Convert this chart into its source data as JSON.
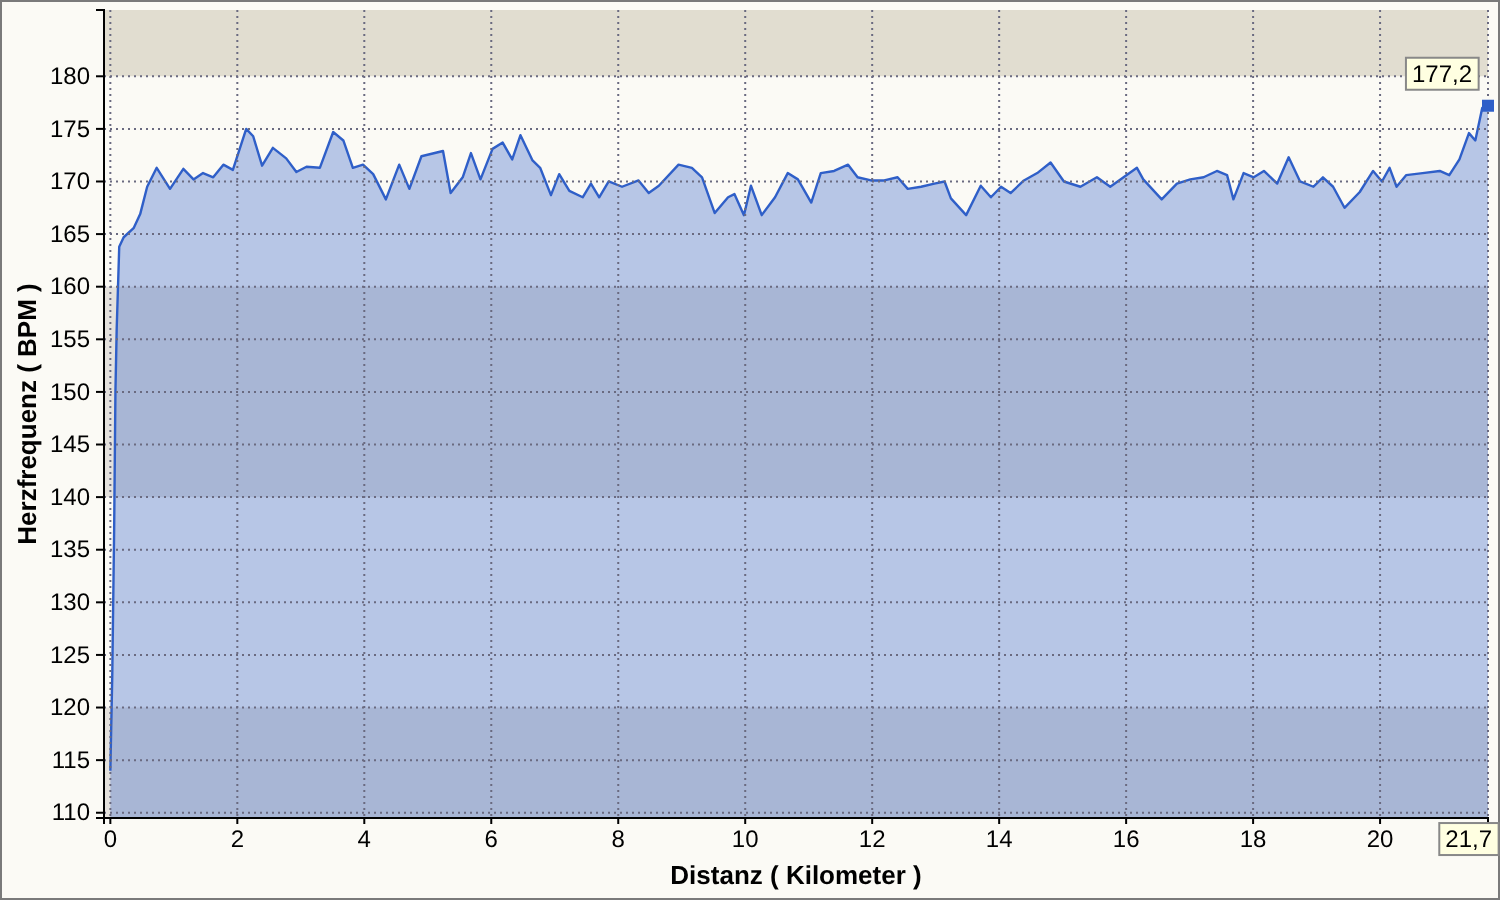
{
  "chart_data": {
    "type": "area",
    "xlabel": "Distanz ( Kilometer )",
    "ylabel": "Herzfrequenz ( BPM )",
    "x": [
      0,
      0.03,
      0.06,
      0.08,
      0.1,
      0.14,
      0.21,
      0.37,
      0.47,
      0.58,
      0.73,
      0.94,
      1.15,
      1.31,
      1.46,
      1.62,
      1.78,
      1.93,
      2.14,
      2.25,
      2.39,
      2.56,
      2.77,
      2.93,
      3.09,
      3.3,
      3.51,
      3.67,
      3.82,
      3.98,
      4.14,
      4.34,
      4.55,
      4.71,
      4.9,
      5.24,
      5.36,
      5.55,
      5.68,
      5.83,
      6.02,
      6.18,
      6.33,
      6.46,
      6.65,
      6.77,
      6.94,
      7.07,
      7.23,
      7.44,
      7.57,
      7.7,
      7.85,
      8.06,
      8.32,
      8.48,
      8.64,
      8.95,
      9.16,
      9.32,
      9.52,
      9.73,
      9.83,
      9.98,
      10.09,
      10.26,
      10.47,
      10.67,
      10.83,
      11.04,
      11.19,
      11.4,
      11.62,
      11.77,
      11.98,
      12.19,
      12.4,
      12.56,
      12.77,
      12.98,
      13.14,
      13.24,
      13.48,
      13.71,
      13.87,
      14.03,
      14.18,
      14.39,
      14.6,
      14.81,
      15.02,
      15.28,
      15.54,
      15.75,
      15.96,
      16.17,
      16.27,
      16.56,
      16.8,
      17.01,
      17.22,
      17.43,
      17.59,
      17.69,
      17.85,
      18.01,
      18.17,
      18.38,
      18.56,
      18.74,
      18.95,
      19.1,
      19.26,
      19.44,
      19.68,
      19.89,
      20.03,
      20.15,
      20.26,
      20.41,
      20.67,
      20.94,
      21.09,
      21.25,
      21.4,
      21.5,
      21.61,
      21.7
    ],
    "series": [
      {
        "color": "#2f5fc8",
        "values": [
          114,
          123,
          137,
          150,
          156,
          163.8,
          164.7,
          165.6,
          166.9,
          169.5,
          171.3,
          169.3,
          171.2,
          170.2,
          170.8,
          170.4,
          171.6,
          171.1,
          175,
          174.3,
          171.5,
          173.2,
          172.2,
          170.9,
          171.4,
          171.3,
          174.7,
          173.9,
          171.3,
          171.6,
          170.7,
          168.3,
          171.6,
          169.3,
          172.4,
          172.9,
          168.9,
          170.4,
          172.7,
          170.2,
          173.1,
          173.7,
          172.1,
          174.4,
          172,
          171.3,
          168.7,
          170.7,
          169.1,
          168.5,
          169.8,
          168.5,
          170,
          169.5,
          170.1,
          168.9,
          169.6,
          171.6,
          171.3,
          170.4,
          167,
          168.5,
          168.8,
          166.8,
          169.6,
          166.8,
          168.5,
          170.8,
          170.2,
          168,
          170.8,
          171,
          171.6,
          170.4,
          170.1,
          170.1,
          170.4,
          169.3,
          169.5,
          169.8,
          170,
          168.4,
          166.8,
          169.6,
          168.5,
          169.5,
          168.9,
          170.1,
          170.8,
          171.8,
          170,
          169.5,
          170.4,
          169.5,
          170.4,
          171.3,
          170.2,
          168.3,
          169.8,
          170.2,
          170.4,
          171,
          170.6,
          168.3,
          170.8,
          170.4,
          171,
          169.8,
          172.3,
          170,
          169.5,
          170.4,
          169.5,
          167.5,
          169,
          171,
          170,
          171.3,
          169.5,
          170.6,
          170.8,
          171,
          170.6,
          172.1,
          174.6,
          173.9,
          177,
          177.2
        ]
      }
    ],
    "xlim": [
      -0.1,
      21.7
    ],
    "ylim": [
      109.5,
      186.3
    ],
    "xticks": [
      0,
      2,
      4,
      6,
      8,
      10,
      12,
      14,
      16,
      18,
      20,
      {
        "value": 21.7,
        "label": "21,7"
      }
    ],
    "yticks": [
      110,
      115,
      120,
      125,
      130,
      135,
      140,
      145,
      150,
      155,
      160,
      165,
      170,
      175,
      180
    ],
    "grid": true,
    "bands": [
      {
        "axis": "y",
        "from": 180,
        "to": 186.3,
        "color": "#e1ddd0"
      },
      {
        "axis": "y",
        "from": 140,
        "to": 160,
        "color": "#e4e1dc"
      },
      {
        "axis": "y",
        "from": 109.5,
        "to": 120,
        "color": "#e4e1dc"
      }
    ],
    "annotations": [
      {
        "text": "177,2",
        "x": 21.7,
        "y": 177.2
      }
    ]
  }
}
